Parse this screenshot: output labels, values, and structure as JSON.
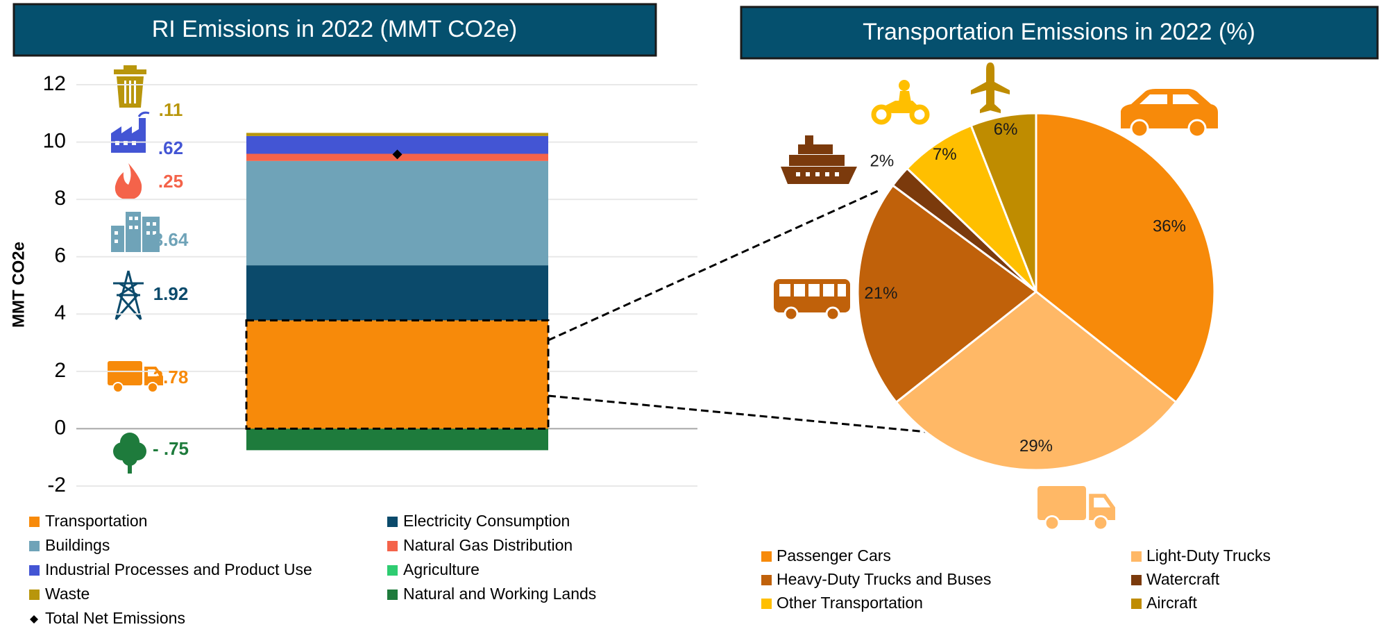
{
  "chart_data": [
    {
      "type": "bar",
      "stacked": true,
      "title": "RI Emissions in 2022 (MMT CO2e)",
      "y_label": "MMT CO2e",
      "categories": [
        null
      ],
      "ylim": [
        -2,
        12
      ],
      "yticks": [
        -2,
        0,
        2,
        4,
        6,
        8,
        10,
        12
      ],
      "grid": true,
      "series": [
        {
          "name": "Transportation",
          "color": "#f78a0a",
          "values": [
            3.78
          ],
          "value_labels": [
            "3.78"
          ]
        },
        {
          "name": "Electricity Consumption",
          "color": "#0b4a6b",
          "values": [
            1.92
          ],
          "value_labels": [
            "1.92"
          ]
        },
        {
          "name": "Buildings",
          "color": "#6fa3b8",
          "values": [
            3.64
          ],
          "value_labels": [
            "3.64"
          ]
        },
        {
          "name": "Natural Gas Distribution",
          "color": "#f4634a",
          "values": [
            0.25
          ],
          "value_labels": [
            ".25"
          ]
        },
        {
          "name": "Industrial Processes and Product Use",
          "color": "#4355d4",
          "values": [
            0.62
          ],
          "value_labels": [
            ".62"
          ]
        },
        {
          "name": "Agriculture",
          "color": "#2ecc71",
          "values": [
            0
          ]
        },
        {
          "name": "Waste",
          "color": "#b8960c",
          "values": [
            0.11
          ],
          "value_labels": [
            ".11"
          ]
        },
        {
          "name": "Natural and Working Lands",
          "color": "#1e7b3c",
          "values": [
            -0.75
          ],
          "value_labels": [
            "- .75"
          ]
        },
        {
          "name": "Total Net Emissions",
          "type": "scatter",
          "marker": "diamond",
          "color": "#000000",
          "values": [
            9.57
          ]
        }
      ]
    },
    {
      "type": "pie",
      "title": "Transportation Emissions in 2022 (%)",
      "categories": [
        "Passenger Cars",
        "Light-Duty Trucks",
        "Heavy-Duty Trucks and Buses",
        "Watercraft",
        "Other Transportation",
        "Aircraft"
      ],
      "values": [
        36,
        29,
        21,
        2,
        7,
        6
      ],
      "value_labels": [
        "36%",
        "29%",
        "21%",
        "2%",
        "7%",
        "6%"
      ],
      "colors": [
        "#f78a0a",
        "#ffb866",
        "#c0610a",
        "#7b3a0c",
        "#ffbf00",
        "#bf8c00"
      ]
    }
  ]
}
